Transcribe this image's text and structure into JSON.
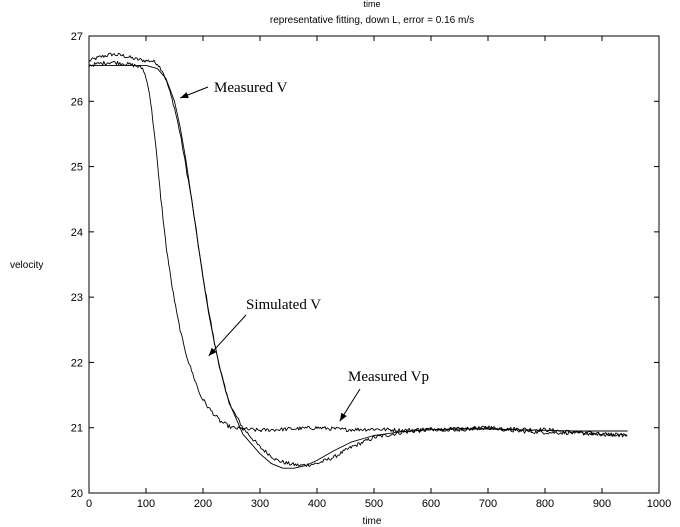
{
  "chart_data": {
    "type": "line",
    "top_label": "time",
    "title": "representative fitting, down L, error = 0.16 m/s",
    "xlabel": "time",
    "ylabel": "velocity",
    "xlim": [
      0,
      1000
    ],
    "ylim": [
      20,
      27
    ],
    "xticks": [
      0,
      100,
      200,
      300,
      400,
      500,
      600,
      700,
      800,
      900,
      1000
    ],
    "yticks": [
      20,
      21,
      22,
      23,
      24,
      25,
      26,
      27
    ],
    "grid": false,
    "legend": "none",
    "series": [
      {
        "name": "Measured V",
        "noisy": true,
        "x": [
          0,
          20,
          40,
          60,
          80,
          100,
          110,
          120,
          130,
          140,
          150,
          160,
          170,
          180,
          190,
          200,
          210,
          220,
          230,
          240,
          250,
          270,
          300,
          330,
          350,
          370,
          400,
          430,
          460,
          500,
          550,
          600,
          650,
          700,
          750,
          800,
          850,
          900,
          945
        ],
        "y": [
          26.62,
          26.68,
          26.72,
          26.7,
          26.65,
          26.62,
          26.62,
          26.58,
          26.45,
          26.2,
          25.9,
          25.5,
          25.0,
          24.5,
          23.9,
          23.3,
          22.8,
          22.3,
          21.9,
          21.55,
          21.3,
          21.0,
          20.7,
          20.5,
          20.45,
          20.42,
          20.45,
          20.55,
          20.7,
          20.85,
          20.93,
          20.97,
          20.98,
          21.0,
          20.98,
          20.97,
          20.93,
          20.9,
          20.88
        ]
      },
      {
        "name": "Simulated V",
        "noisy": false,
        "x": [
          0,
          50,
          100,
          120,
          135,
          150,
          160,
          170,
          180,
          190,
          200,
          210,
          220,
          230,
          240,
          250,
          270,
          300,
          320,
          340,
          360,
          380,
          400,
          430,
          460,
          500,
          550,
          600,
          650,
          700,
          750,
          800,
          850,
          900,
          945
        ],
        "y": [
          26.55,
          26.55,
          26.55,
          26.5,
          26.35,
          26.0,
          25.6,
          25.1,
          24.5,
          23.9,
          23.3,
          22.75,
          22.3,
          21.9,
          21.55,
          21.3,
          20.9,
          20.6,
          20.45,
          20.38,
          20.38,
          20.42,
          20.5,
          20.65,
          20.78,
          20.88,
          20.94,
          20.97,
          20.98,
          20.98,
          20.97,
          20.96,
          20.95,
          20.95,
          20.95
        ]
      },
      {
        "name": "Measured Vp",
        "noisy": true,
        "x": [
          0,
          20,
          40,
          60,
          80,
          95,
          105,
          115,
          125,
          135,
          145,
          155,
          165,
          175,
          185,
          195,
          210,
          230,
          250,
          270,
          300,
          350,
          400,
          450,
          500,
          550,
          600,
          650,
          700,
          750,
          800,
          850,
          900,
          945
        ],
        "y": [
          26.55,
          26.58,
          26.6,
          26.58,
          26.55,
          26.5,
          26.2,
          25.5,
          24.6,
          23.8,
          23.2,
          22.7,
          22.3,
          22.0,
          21.75,
          21.5,
          21.3,
          21.1,
          21.0,
          20.98,
          20.96,
          20.98,
          21.0,
          20.97,
          20.98,
          20.96,
          20.98,
          20.97,
          21.0,
          20.95,
          20.93,
          20.92,
          20.9,
          20.88
        ]
      }
    ],
    "annotations": [
      {
        "text": "Measured V",
        "target_x": 160,
        "target_y": 26.05
      },
      {
        "text": "Simulated V",
        "target_x": 210,
        "target_y": 22.1
      },
      {
        "text": "Measured Vp",
        "target_x": 440,
        "target_y": 21.1
      }
    ]
  }
}
